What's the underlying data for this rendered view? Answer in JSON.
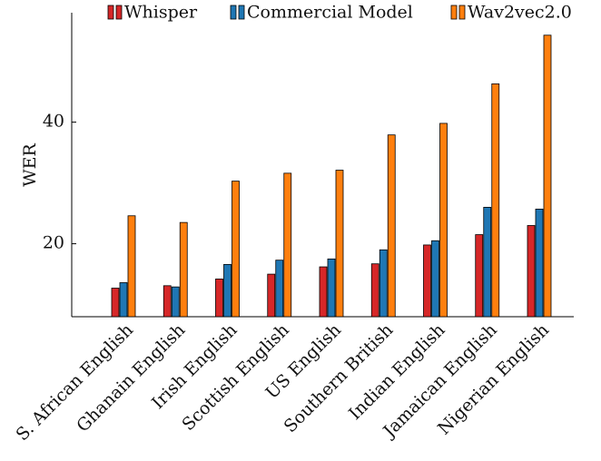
{
  "chart_data": {
    "type": "bar",
    "ylabel": "WER",
    "xlabel": "",
    "ylim": [
      8,
      58
    ],
    "yticks": [
      20,
      40
    ],
    "grid": false,
    "legend_position": "top",
    "categories": [
      "S. African English",
      "Ghanain English",
      "Irish English",
      "Scottish English",
      "US English",
      "Southern British",
      "Indian English",
      "Jamaican English",
      "Nigerian English"
    ],
    "series": [
      {
        "name": "Whisper",
        "color": "#d62728",
        "values": [
          12.7,
          13.1,
          14.2,
          15.0,
          16.2,
          16.7,
          19.8,
          21.5,
          23.0
        ]
      },
      {
        "name": "Commercial Model",
        "color": "#1f77b4",
        "values": [
          13.6,
          12.9,
          16.6,
          17.3,
          17.5,
          19.0,
          20.5,
          26.0,
          25.7
        ]
      },
      {
        "name": "Wav2vec2.0",
        "color": "#ff7f0e",
        "values": [
          24.6,
          23.5,
          30.3,
          31.6,
          32.1,
          37.9,
          39.8,
          46.3,
          54.3
        ]
      }
    ]
  }
}
